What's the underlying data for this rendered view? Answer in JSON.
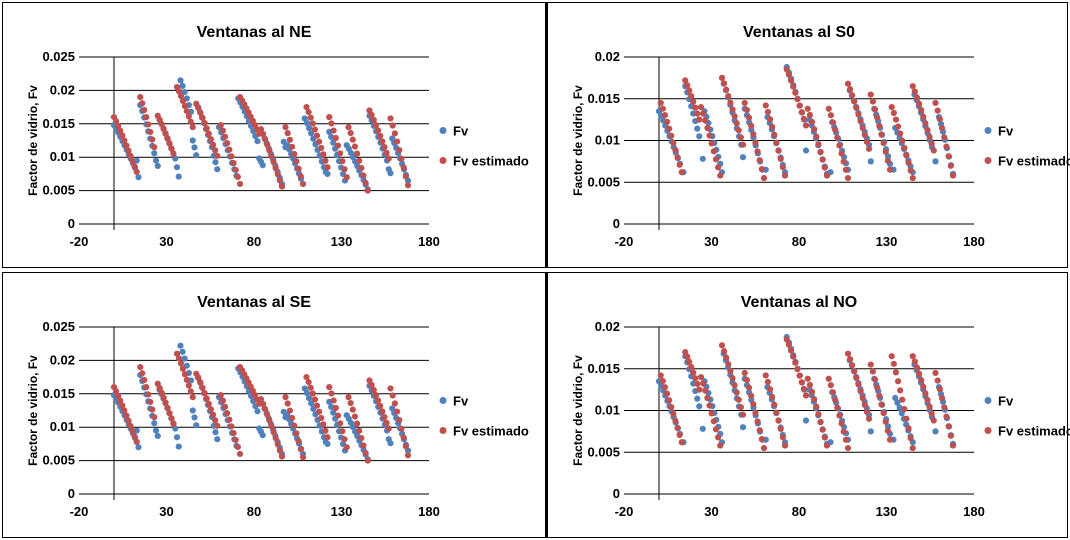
{
  "colors": {
    "fv": "#4f81bd",
    "fv_estimado": "#c0504d",
    "grid": "#000000"
  },
  "chart_data": [
    {
      "type": "scatter",
      "title": "Ventanas al NE",
      "ylabel": "Factor de vidrio, Fv",
      "xlabel": "",
      "xlim": [
        -20,
        180
      ],
      "ylim": [
        0,
        0.025
      ],
      "x_ticks": [
        "-20",
        "30",
        "80",
        "130",
        "180"
      ],
      "y_ticks": [
        "0",
        "0.005",
        "0.01",
        "0.015",
        "0.02",
        "0.025"
      ],
      "grid": "horizontal",
      "legend": "right",
      "series": [
        {
          "name": "Fv",
          "segments": [
            [
              0,
              12,
              0.0148,
              0.0084
            ],
            [
              13,
              14,
              0.0095,
              0.007
            ],
            [
              15,
              23,
              0.0178,
              0.0106
            ],
            [
              24,
              25,
              0.0095,
              0.0087
            ],
            [
              26,
              35,
              0.0156,
              0.0098
            ],
            [
              36,
              37,
              0.0085,
              0.0071
            ],
            [
              38,
              44,
              0.0215,
              0.0168
            ],
            [
              45,
              47,
              0.0125,
              0.0103
            ],
            [
              48,
              56,
              0.0175,
              0.0115
            ],
            [
              57,
              59,
              0.0102,
              0.0082
            ],
            [
              60,
              70,
              0.0145,
              0.0072
            ],
            [
              71,
              82,
              0.0188,
              0.0124
            ],
            [
              83,
              85,
              0.0098,
              0.0088
            ],
            [
              86,
              96,
              0.0128,
              0.006
            ],
            [
              97,
              98,
              0.0123,
              0.0115
            ],
            [
              99,
              108,
              0.0118,
              0.006
            ],
            [
              109,
              120,
              0.0158,
              0.0085
            ],
            [
              121,
              122,
              0.0078,
              0.0075
            ],
            [
              123,
              132,
              0.0138,
              0.0065
            ],
            [
              133,
              145,
              0.0118,
              0.0052
            ],
            [
              146,
              156,
              0.0162,
              0.0095
            ],
            [
              157,
              158,
              0.0082,
              0.0076
            ],
            [
              159,
              168,
              0.0128,
              0.0065
            ]
          ]
        },
        {
          "name": "Fv estimado",
          "segments": [
            [
              0,
              13,
              0.016,
              0.0078
            ],
            [
              15,
              23,
              0.019,
              0.0115
            ],
            [
              25,
              34,
              0.0162,
              0.0105
            ],
            [
              36,
              45,
              0.0205,
              0.0145
            ],
            [
              47,
              59,
              0.018,
              0.0102
            ],
            [
              61,
              72,
              0.0148,
              0.006
            ],
            [
              72,
              83,
              0.019,
              0.0135
            ],
            [
              84,
              96,
              0.0142,
              0.0056
            ],
            [
              98,
              108,
              0.0145,
              0.006
            ],
            [
              110,
              122,
              0.0175,
              0.0085
            ],
            [
              123,
              133,
              0.016,
              0.007
            ],
            [
              134,
              145,
              0.0145,
              0.005
            ],
            [
              146,
              157,
              0.017,
              0.0098
            ],
            [
              158,
              168,
              0.0158,
              0.0058
            ]
          ]
        }
      ]
    },
    {
      "type": "scatter",
      "title": "Ventanas al S0",
      "ylabel": "Factor de vidrio, Fv",
      "xlabel": "",
      "xlim": [
        -20,
        180
      ],
      "ylim": [
        0,
        0.02
      ],
      "x_ticks": [
        "-20",
        "30",
        "80",
        "130",
        "180"
      ],
      "y_ticks": [
        "0",
        "0.005",
        "0.01",
        "0.015",
        "0.02"
      ],
      "grid": "horizontal",
      "legend": "right",
      "series": [
        {
          "name": "Fv",
          "segments": [
            [
              0,
              12,
              0.0135,
              0.0072
            ],
            [
              14,
              14,
              0.0062,
              0.0062
            ],
            [
              15,
              23,
              0.0165,
              0.0105
            ],
            [
              25,
              25,
              0.0078,
              0.0078
            ],
            [
              26,
              35,
              0.0135,
              0.0072
            ],
            [
              36,
              36,
              0.0062,
              0.0062
            ],
            [
              37,
              47,
              0.0168,
              0.0095
            ],
            [
              48,
              48,
              0.008,
              0.008
            ],
            [
              49,
              59,
              0.0138,
              0.0065
            ],
            [
              61,
              61,
              0.0065,
              0.0065
            ],
            [
              62,
              72,
              0.0128,
              0.0062
            ],
            [
              73,
              83,
              0.0188,
              0.0125
            ],
            [
              84,
              84,
              0.0088,
              0.0088
            ],
            [
              86,
              96,
              0.0125,
              0.006
            ],
            [
              98,
              98,
              0.0062,
              0.0062
            ],
            [
              99,
              108,
              0.0122,
              0.0065
            ],
            [
              109,
              120,
              0.016,
              0.0095
            ],
            [
              121,
              121,
              0.0075,
              0.0075
            ],
            [
              123,
              132,
              0.0138,
              0.0072
            ],
            [
              134,
              134,
              0.0065,
              0.0065
            ],
            [
              135,
              145,
              0.0115,
              0.0062
            ],
            [
              146,
              156,
              0.0155,
              0.0092
            ],
            [
              158,
              158,
              0.0075,
              0.0075
            ],
            [
              160,
              168,
              0.0128,
              0.006
            ]
          ]
        },
        {
          "name": "Fv estimado",
          "segments": [
            [
              1,
              13,
              0.0145,
              0.0062
            ],
            [
              15,
              23,
              0.0172,
              0.0125
            ],
            [
              24,
              35,
              0.014,
              0.0058
            ],
            [
              36,
              48,
              0.0175,
              0.0095
            ],
            [
              49,
              60,
              0.0145,
              0.0055
            ],
            [
              61,
              72,
              0.0142,
              0.0058
            ],
            [
              73,
              84,
              0.0185,
              0.0118
            ],
            [
              85,
              96,
              0.0138,
              0.0058
            ],
            [
              97,
              108,
              0.0138,
              0.0055
            ],
            [
              108,
              120,
              0.0168,
              0.009
            ],
            [
              121,
              132,
              0.0155,
              0.0065
            ],
            [
              133,
              145,
              0.014,
              0.0055
            ],
            [
              145,
              157,
              0.0165,
              0.0088
            ],
            [
              158,
              168,
              0.0145,
              0.0058
            ]
          ]
        }
      ]
    },
    {
      "type": "scatter",
      "title": "Ventanas al SE",
      "ylabel": "Factor de vidrio, Fv",
      "xlabel": "",
      "xlim": [
        -20,
        180
      ],
      "ylim": [
        0,
        0.025
      ],
      "x_ticks": [
        "-20",
        "30",
        "80",
        "130",
        "180"
      ],
      "y_ticks": [
        "0",
        "0.005",
        "0.01",
        "0.015",
        "0.02",
        "0.025"
      ],
      "grid": "horizontal",
      "legend": "right",
      "series": [
        {
          "name": "Fv",
          "segments": [
            [
              0,
              12,
              0.0148,
              0.0084
            ],
            [
              13,
              14,
              0.0095,
              0.007
            ],
            [
              15,
              23,
              0.0178,
              0.0106
            ],
            [
              24,
              25,
              0.0095,
              0.0087
            ],
            [
              26,
              35,
              0.0156,
              0.0098
            ],
            [
              36,
              37,
              0.0085,
              0.0071
            ],
            [
              38,
              44,
              0.0222,
              0.017
            ],
            [
              45,
              47,
              0.0125,
              0.0103
            ],
            [
              48,
              56,
              0.0175,
              0.0115
            ],
            [
              57,
              59,
              0.0102,
              0.0082
            ],
            [
              60,
              70,
              0.0145,
              0.0072
            ],
            [
              71,
              82,
              0.0188,
              0.0124
            ],
            [
              83,
              85,
              0.0098,
              0.0088
            ],
            [
              86,
              96,
              0.0128,
              0.006
            ],
            [
              97,
              98,
              0.0123,
              0.0115
            ],
            [
              99,
              108,
              0.0118,
              0.006
            ],
            [
              109,
              120,
              0.0158,
              0.0085
            ],
            [
              121,
              122,
              0.0078,
              0.0075
            ],
            [
              123,
              132,
              0.0138,
              0.0065
            ],
            [
              133,
              145,
              0.0118,
              0.0052
            ],
            [
              146,
              156,
              0.0162,
              0.0095
            ],
            [
              157,
              158,
              0.0082,
              0.0076
            ],
            [
              159,
              168,
              0.0128,
              0.0065
            ]
          ]
        },
        {
          "name": "Fv estimado",
          "segments": [
            [
              0,
              13,
              0.016,
              0.0078
            ],
            [
              15,
              23,
              0.019,
              0.0115
            ],
            [
              25,
              34,
              0.0165,
              0.0105
            ],
            [
              36,
              45,
              0.021,
              0.0145
            ],
            [
              47,
              59,
              0.018,
              0.0102
            ],
            [
              61,
              72,
              0.0148,
              0.006
            ],
            [
              72,
              83,
              0.019,
              0.0135
            ],
            [
              84,
              96,
              0.0142,
              0.0056
            ],
            [
              98,
              108,
              0.0145,
              0.0055
            ],
            [
              110,
              122,
              0.0175,
              0.0085
            ],
            [
              123,
              133,
              0.016,
              0.007
            ],
            [
              134,
              145,
              0.0145,
              0.005
            ],
            [
              146,
              157,
              0.017,
              0.0098
            ],
            [
              158,
              168,
              0.0158,
              0.0058
            ]
          ]
        }
      ]
    },
    {
      "type": "scatter",
      "title": "Ventanas al NO",
      "ylabel": "Factor de vidrio, Fv",
      "xlabel": "",
      "xlim": [
        -20,
        180
      ],
      "ylim": [
        0,
        0.02
      ],
      "x_ticks": [
        "-20",
        "30",
        "80",
        "130",
        "180"
      ],
      "y_ticks": [
        "0",
        "0.005",
        "0.01",
        "0.015",
        "0.02"
      ],
      "grid": "horizontal",
      "legend": "right",
      "series": [
        {
          "name": "Fv",
          "segments": [
            [
              0,
              12,
              0.0135,
              0.0072
            ],
            [
              14,
              14,
              0.0062,
              0.0062
            ],
            [
              15,
              23,
              0.0165,
              0.0105
            ],
            [
              25,
              25,
              0.0078,
              0.0078
            ],
            [
              26,
              35,
              0.0135,
              0.0072
            ],
            [
              36,
              36,
              0.0062,
              0.0062
            ],
            [
              37,
              47,
              0.0168,
              0.0095
            ],
            [
              48,
              48,
              0.008,
              0.008
            ],
            [
              49,
              59,
              0.0138,
              0.0065
            ],
            [
              61,
              61,
              0.0065,
              0.0065
            ],
            [
              62,
              72,
              0.0128,
              0.0062
            ],
            [
              73,
              83,
              0.0188,
              0.0125
            ],
            [
              84,
              84,
              0.0088,
              0.0088
            ],
            [
              86,
              96,
              0.0125,
              0.006
            ],
            [
              98,
              98,
              0.0062,
              0.0062
            ],
            [
              99,
              108,
              0.0122,
              0.0065
            ],
            [
              109,
              120,
              0.016,
              0.0095
            ],
            [
              121,
              121,
              0.0075,
              0.0075
            ],
            [
              123,
              132,
              0.0138,
              0.0072
            ],
            [
              134,
              134,
              0.0065,
              0.0065
            ],
            [
              135,
              145,
              0.0115,
              0.0062
            ],
            [
              146,
              156,
              0.0155,
              0.0092
            ],
            [
              158,
              158,
              0.0075,
              0.0075
            ],
            [
              160,
              168,
              0.0128,
              0.006
            ]
          ]
        },
        {
          "name": "Fv estimado",
          "segments": [
            [
              1,
              13,
              0.0142,
              0.0062
            ],
            [
              15,
              23,
              0.017,
              0.0125
            ],
            [
              24,
              35,
              0.014,
              0.0058
            ],
            [
              36,
              48,
              0.0178,
              0.0095
            ],
            [
              49,
              60,
              0.0145,
              0.0055
            ],
            [
              61,
              72,
              0.0142,
              0.0058
            ],
            [
              73,
              84,
              0.0185,
              0.0118
            ],
            [
              85,
              96,
              0.0138,
              0.0058
            ],
            [
              97,
              108,
              0.0138,
              0.0055
            ],
            [
              108,
              120,
              0.0168,
              0.009
            ],
            [
              121,
              132,
              0.0155,
              0.0065
            ],
            [
              133,
              145,
              0.0165,
              0.0055
            ],
            [
              145,
              157,
              0.0165,
              0.0088
            ],
            [
              158,
              168,
              0.0145,
              0.0058
            ]
          ]
        }
      ]
    }
  ]
}
